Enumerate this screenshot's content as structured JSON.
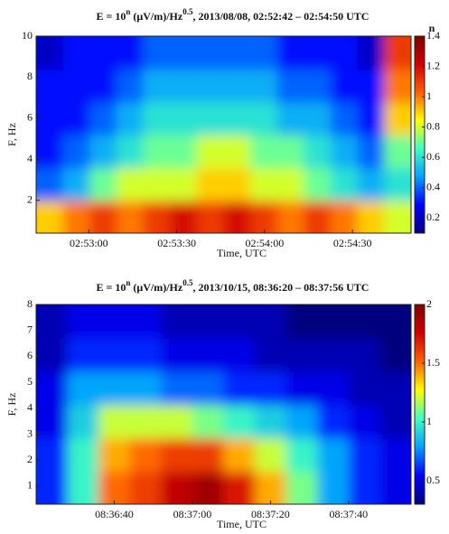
{
  "chart_data": [
    {
      "type": "heatmap",
      "title": {
        "prefix": "E = 10",
        "exp1": "n",
        "unit": " (μV/m)/Hz",
        "exp2": "0.5",
        "rest": ", 2013/08/08, 02:52:42 – 02:54:50 UTC"
      },
      "x_label": "Time, UTC",
      "y_label": "F, Hz",
      "colorbar_label": "n",
      "xlim": [
        "02:52:42",
        "02:54:50"
      ],
      "xticks": [
        "02:53:00",
        "02:53:30",
        "02:54:00",
        "02:54:30"
      ],
      "ylim": [
        0.4,
        10
      ],
      "yticks": [
        2,
        4,
        6,
        8,
        10
      ],
      "clim": [
        0.1,
        1.4
      ],
      "cticks": [
        0.2,
        0.4,
        0.6,
        0.8,
        1,
        1.2,
        1.4
      ],
      "colormap": [
        "#00007f",
        "#0000ff",
        "#00a0ff",
        "#40ffc0",
        "#ffff00",
        "#ff6000",
        "#d00000",
        "#7f0000"
      ],
      "z": [
        [
          0.9,
          1.0,
          1.1,
          1.0,
          1.1,
          1.2,
          1.1,
          1.2,
          1.1,
          1.0,
          1.1,
          1.0,
          0.9,
          0.8
        ],
        [
          0.4,
          0.5,
          0.7,
          0.8,
          0.8,
          0.8,
          0.9,
          0.9,
          0.8,
          0.8,
          0.7,
          0.6,
          0.5,
          0.6
        ],
        [
          0.3,
          0.4,
          0.5,
          0.6,
          0.7,
          0.7,
          0.8,
          0.8,
          0.7,
          0.7,
          0.6,
          0.5,
          0.4,
          0.7
        ],
        [
          0.3,
          0.3,
          0.4,
          0.5,
          0.6,
          0.6,
          0.6,
          0.6,
          0.6,
          0.5,
          0.5,
          0.4,
          0.3,
          0.9
        ],
        [
          0.3,
          0.3,
          0.3,
          0.4,
          0.5,
          0.5,
          0.5,
          0.5,
          0.5,
          0.4,
          0.4,
          0.3,
          0.3,
          1.0
        ],
        [
          0.2,
          0.3,
          0.3,
          0.3,
          0.4,
          0.4,
          0.4,
          0.4,
          0.4,
          0.3,
          0.3,
          0.3,
          0.2,
          1.1
        ]
      ]
    },
    {
      "type": "heatmap",
      "title": {
        "prefix": "E = 10",
        "exp1": "n",
        "unit": " (μV/m)/Hz",
        "exp2": "0.5",
        "rest": ", 2013/10/15, 08:36:20 – 08:37:56 UTC"
      },
      "x_label": "Time, UTC",
      "y_label": "F, Hz",
      "xlim": [
        "08:36:20",
        "08:37:56"
      ],
      "xticks": [
        "08:36:40",
        "08:37:00",
        "08:37:20",
        "08:37:40"
      ],
      "ylim": [
        0.3,
        8
      ],
      "yticks": [
        1,
        2,
        3,
        4,
        5,
        6,
        7,
        8
      ],
      "clim": [
        0.3,
        2
      ],
      "cticks": [
        0.5,
        1,
        1.5,
        2
      ],
      "colormap": [
        "#00007f",
        "#0000ff",
        "#00a0ff",
        "#40ffc0",
        "#ffff00",
        "#ff6000",
        "#d00000",
        "#7f0000"
      ],
      "z": [
        [
          0.6,
          1.0,
          1.5,
          1.6,
          1.8,
          1.9,
          1.7,
          1.4,
          1.1,
          0.8,
          0.6,
          0.5
        ],
        [
          0.6,
          1.0,
          1.4,
          1.5,
          1.6,
          1.6,
          1.4,
          1.2,
          1.0,
          0.8,
          0.6,
          0.5
        ],
        [
          0.5,
          0.9,
          1.2,
          1.2,
          1.2,
          1.1,
          1.0,
          0.9,
          0.8,
          0.6,
          0.5,
          0.4
        ],
        [
          0.5,
          0.8,
          0.8,
          0.8,
          0.7,
          0.7,
          0.6,
          0.6,
          0.5,
          0.5,
          0.4,
          0.4
        ],
        [
          0.4,
          0.6,
          0.6,
          0.6,
          0.5,
          0.5,
          0.5,
          0.4,
          0.4,
          0.4,
          0.4,
          0.3
        ],
        [
          0.4,
          0.5,
          0.5,
          0.5,
          0.4,
          0.4,
          0.4,
          0.4,
          0.3,
          0.3,
          0.3,
          0.3
        ]
      ]
    }
  ]
}
